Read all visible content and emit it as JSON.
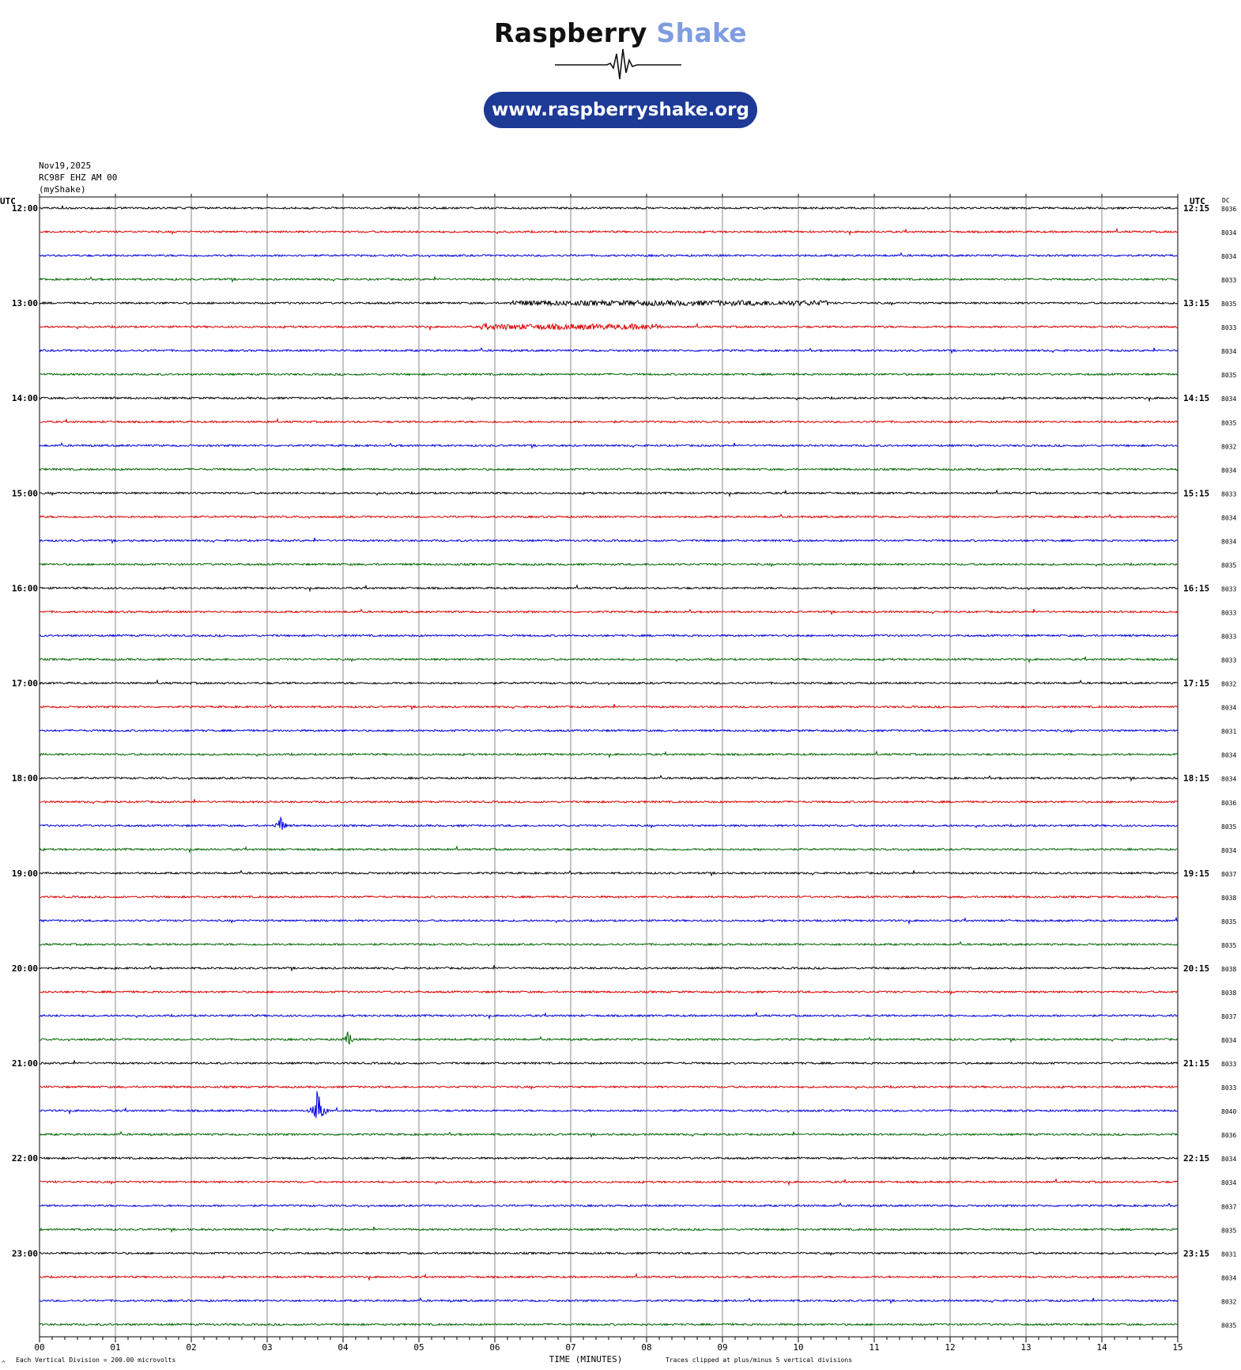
{
  "brand": {
    "name_part1": "Raspberry",
    "name_part2": "Shake",
    "url": "www.raspberryshake.org",
    "accent": "#7f9de0",
    "pill_color": "#1d3a96"
  },
  "header": {
    "date": "Nov19,2025",
    "station": "RC98F EHZ AM 00",
    "source": "(myShake)"
  },
  "axes": {
    "left_label": "UTC",
    "right_label": "UTC",
    "dc_label": "DC",
    "xlabel": "TIME (MINUTES)",
    "x_ticks": [
      "00",
      "01",
      "02",
      "03",
      "04",
      "05",
      "06",
      "07",
      "08",
      "09",
      "10",
      "11",
      "12",
      "13",
      "14",
      "15"
    ],
    "scale_note": "Each Vertical Division =  200.00 microvolts",
    "clip_note": "Traces clipped at plus/minus 5 vertical divisions",
    "corner_mark": "^"
  },
  "colors": {
    "cycle": [
      "#000000",
      "#dd0000",
      "#0000dd",
      "#006600"
    ],
    "grid": "#888888"
  },
  "chart_data": {
    "type": "line",
    "title": "",
    "xlabel": "TIME (MINUTES)",
    "ylabel": "",
    "xlim": [
      0,
      15
    ],
    "grid": true,
    "rows": [
      {
        "left": "12:00",
        "right": "12:15",
        "dc": "8036"
      },
      {
        "left": "",
        "right": "",
        "dc": "8034"
      },
      {
        "left": "",
        "right": "",
        "dc": "8034"
      },
      {
        "left": "",
        "right": "",
        "dc": "8033"
      },
      {
        "left": "13:00",
        "right": "13:15",
        "dc": "8035"
      },
      {
        "left": "",
        "right": "",
        "dc": "8033"
      },
      {
        "left": "",
        "right": "",
        "dc": "8034"
      },
      {
        "left": "",
        "right": "",
        "dc": "8035"
      },
      {
        "left": "14:00",
        "right": "14:15",
        "dc": "8034"
      },
      {
        "left": "",
        "right": "",
        "dc": "8035"
      },
      {
        "left": "",
        "right": "",
        "dc": "8032"
      },
      {
        "left": "",
        "right": "",
        "dc": "8034"
      },
      {
        "left": "15:00",
        "right": "15:15",
        "dc": "8033"
      },
      {
        "left": "",
        "right": "",
        "dc": "8034"
      },
      {
        "left": "",
        "right": "",
        "dc": "8034"
      },
      {
        "left": "",
        "right": "",
        "dc": "8035"
      },
      {
        "left": "16:00",
        "right": "16:15",
        "dc": "8033"
      },
      {
        "left": "",
        "right": "",
        "dc": "8033"
      },
      {
        "left": "",
        "right": "",
        "dc": "8033"
      },
      {
        "left": "",
        "right": "",
        "dc": "8033"
      },
      {
        "left": "17:00",
        "right": "17:15",
        "dc": "8032"
      },
      {
        "left": "",
        "right": "",
        "dc": "8034"
      },
      {
        "left": "",
        "right": "",
        "dc": "8031"
      },
      {
        "left": "",
        "right": "",
        "dc": "8034"
      },
      {
        "left": "18:00",
        "right": "18:15",
        "dc": "8034"
      },
      {
        "left": "",
        "right": "",
        "dc": "8036"
      },
      {
        "left": "",
        "right": "",
        "dc": "8035"
      },
      {
        "left": "",
        "right": "",
        "dc": "8034"
      },
      {
        "left": "19:00",
        "right": "19:15",
        "dc": "8037"
      },
      {
        "left": "",
        "right": "",
        "dc": "8038"
      },
      {
        "left": "",
        "right": "",
        "dc": "8035"
      },
      {
        "left": "",
        "right": "",
        "dc": "8035"
      },
      {
        "left": "20:00",
        "right": "20:15",
        "dc": "8038"
      },
      {
        "left": "",
        "right": "",
        "dc": "8038"
      },
      {
        "left": "",
        "right": "",
        "dc": "8037"
      },
      {
        "left": "",
        "right": "",
        "dc": "8034"
      },
      {
        "left": "21:00",
        "right": "21:15",
        "dc": "8033"
      },
      {
        "left": "",
        "right": "",
        "dc": "8033"
      },
      {
        "left": "",
        "right": "",
        "dc": "8040"
      },
      {
        "left": "",
        "right": "",
        "dc": "8036"
      },
      {
        "left": "22:00",
        "right": "22:15",
        "dc": "8034"
      },
      {
        "left": "",
        "right": "",
        "dc": "8034"
      },
      {
        "left": "",
        "right": "",
        "dc": "8037"
      },
      {
        "left": "",
        "right": "",
        "dc": "8035"
      },
      {
        "left": "23:00",
        "right": "23:15",
        "dc": "8031"
      },
      {
        "left": "",
        "right": "",
        "dc": "8034"
      },
      {
        "left": "",
        "right": "",
        "dc": "8032"
      },
      {
        "left": "",
        "right": "",
        "dc": "8035"
      }
    ],
    "events": [
      {
        "row": 4,
        "start_min": 6.2,
        "end_min": 10.4,
        "level": 0.35
      },
      {
        "row": 5,
        "start_min": 5.8,
        "end_min": 8.2,
        "level": 0.4
      },
      {
        "row": 26,
        "start_min": 3.15,
        "end_min": 3.2,
        "level": 3.0
      },
      {
        "row": 35,
        "start_min": 4.05,
        "end_min": 4.1,
        "level": 2.5
      },
      {
        "row": 38,
        "start_min": 3.65,
        "end_min": 3.7,
        "level": 7.0
      }
    ]
  }
}
